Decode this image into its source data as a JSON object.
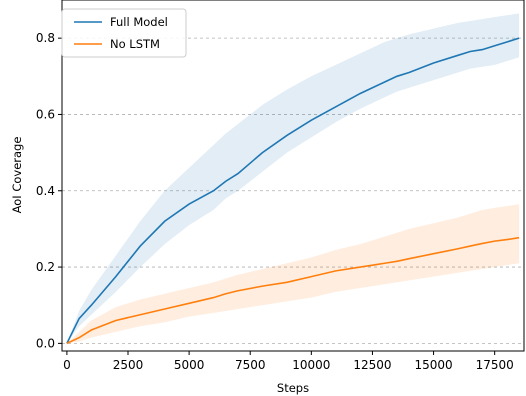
{
  "chart_data": {
    "type": "line",
    "xlabel": "Steps",
    "ylabel": "AoI Coverage",
    "xlim": [
      -200,
      18700
    ],
    "ylim": [
      -0.02,
      0.9
    ],
    "xticks": [
      0,
      2500,
      5000,
      7500,
      10000,
      12500,
      15000,
      17500
    ],
    "xtick_labels": [
      "0",
      "2500",
      "5000",
      "7500",
      "10000",
      "12500",
      "15000",
      "17500"
    ],
    "yticks": [
      0.0,
      0.2,
      0.4,
      0.6,
      0.8
    ],
    "ytick_labels": [
      "0.0",
      "0.2",
      "0.4",
      "0.6",
      "0.8"
    ],
    "grid": "horizontal dashed",
    "legend_position": "top-left",
    "series": [
      {
        "name": "Full Model",
        "color": "#1f77b4",
        "band_color": "#1f77b4",
        "x": [
          0,
          500,
          1000,
          2000,
          3000,
          4000,
          5000,
          6000,
          6500,
          7000,
          8000,
          9000,
          10000,
          11000,
          12000,
          12500,
          13000,
          13500,
          14000,
          15000,
          16000,
          16500,
          17000,
          17500,
          18000,
          18500
        ],
        "y": [
          0.0,
          0.065,
          0.1,
          0.175,
          0.255,
          0.32,
          0.365,
          0.4,
          0.425,
          0.445,
          0.5,
          0.545,
          0.585,
          0.62,
          0.655,
          0.67,
          0.685,
          0.7,
          0.71,
          0.735,
          0.755,
          0.765,
          0.77,
          0.78,
          0.79,
          0.8
        ],
        "lower": [
          0.0,
          0.045,
          0.075,
          0.135,
          0.2,
          0.26,
          0.31,
          0.35,
          0.38,
          0.4,
          0.45,
          0.5,
          0.54,
          0.58,
          0.615,
          0.63,
          0.645,
          0.66,
          0.67,
          0.69,
          0.71,
          0.72,
          0.725,
          0.73,
          0.74,
          0.75
        ],
        "upper": [
          0.0,
          0.085,
          0.14,
          0.23,
          0.32,
          0.4,
          0.46,
          0.52,
          0.55,
          0.575,
          0.625,
          0.665,
          0.7,
          0.73,
          0.76,
          0.775,
          0.79,
          0.8,
          0.81,
          0.825,
          0.84,
          0.845,
          0.85,
          0.855,
          0.86,
          0.865
        ]
      },
      {
        "name": "No LSTM",
        "color": "#ff7f0e",
        "band_color": "#ff7f0e",
        "x": [
          0,
          500,
          1000,
          2000,
          3000,
          4000,
          5000,
          6000,
          6500,
          7000,
          8000,
          9000,
          10000,
          11000,
          12000,
          12500,
          13000,
          13500,
          14000,
          15000,
          16000,
          16500,
          17000,
          17500,
          18000,
          18500
        ],
        "y": [
          0.0,
          0.015,
          0.035,
          0.06,
          0.075,
          0.09,
          0.105,
          0.12,
          0.13,
          0.138,
          0.15,
          0.16,
          0.175,
          0.19,
          0.2,
          0.205,
          0.21,
          0.215,
          0.222,
          0.235,
          0.248,
          0.255,
          0.262,
          0.268,
          0.272,
          0.277
        ],
        "lower": [
          0.0,
          0.005,
          0.015,
          0.03,
          0.045,
          0.055,
          0.07,
          0.08,
          0.085,
          0.09,
          0.1,
          0.11,
          0.12,
          0.135,
          0.145,
          0.15,
          0.155,
          0.16,
          0.165,
          0.175,
          0.185,
          0.19,
          0.195,
          0.2,
          0.205,
          0.21
        ],
        "upper": [
          0.0,
          0.03,
          0.06,
          0.095,
          0.115,
          0.13,
          0.145,
          0.16,
          0.17,
          0.18,
          0.195,
          0.21,
          0.225,
          0.245,
          0.26,
          0.27,
          0.28,
          0.29,
          0.3,
          0.315,
          0.33,
          0.34,
          0.35,
          0.355,
          0.36,
          0.365
        ]
      }
    ]
  }
}
